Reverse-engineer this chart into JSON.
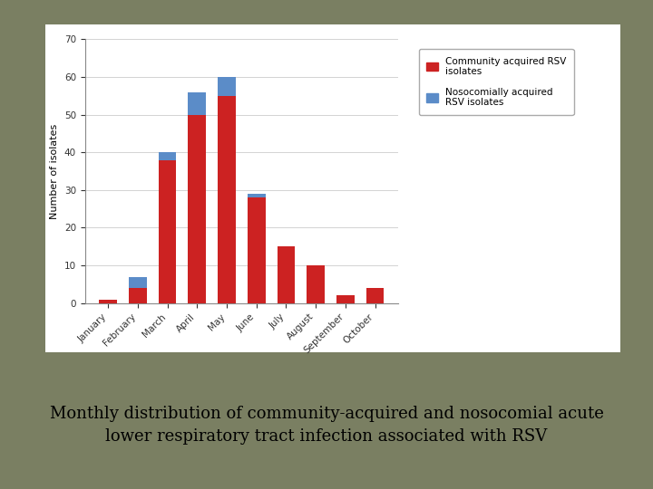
{
  "months": [
    "January",
    "February",
    "March",
    "April",
    "May",
    "June",
    "July",
    "August",
    "September",
    "October"
  ],
  "community_rsv": [
    1,
    4,
    38,
    50,
    55,
    28,
    15,
    10,
    2,
    4
  ],
  "nosocomial_rsv": [
    0,
    3,
    2,
    6,
    5,
    1,
    0,
    0,
    0,
    0
  ],
  "bar_color_community": "#cc2222",
  "bar_color_nosocomial": "#5b8cc8",
  "ylabel": "Number of isolates",
  "ylim": [
    0,
    70
  ],
  "yticks": [
    0,
    10,
    20,
    30,
    40,
    50,
    60,
    70
  ],
  "legend_community": "Community acquired RSV\nisolates",
  "legend_nosocomial": "Nosocomially acquired\nRSV isolates",
  "chart_bg": "#ffffff",
  "outer_bg": "#7a7f62",
  "caption": "Monthly distribution of community-acquired and nosocomial acute\nlower respiratory tract infection associated with RSV",
  "caption_fontsize": 13,
  "caption_color": "#000000",
  "axis_fontsize": 8,
  "tick_fontsize": 7.5
}
